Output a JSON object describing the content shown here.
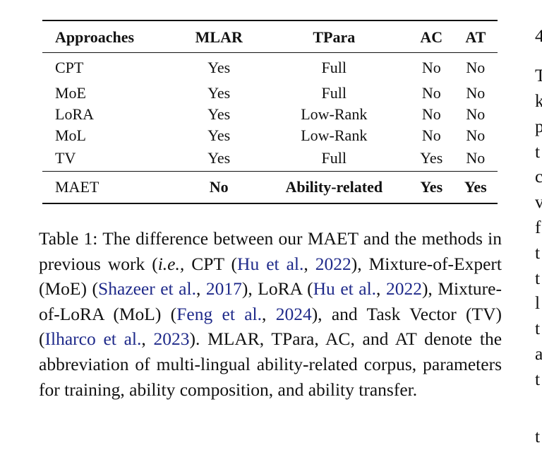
{
  "table": {
    "headers": [
      "Approaches",
      "MLAR",
      "TPara",
      "AC",
      "AT"
    ],
    "rows": [
      [
        "CPT",
        "Yes",
        "Full",
        "No",
        "No"
      ],
      [
        "MoE",
        "Yes",
        "Full",
        "No",
        "No"
      ],
      [
        "LoRA",
        "Yes",
        "Low-Rank",
        "No",
        "No"
      ],
      [
        "MoL",
        "Yes",
        "Low-Rank",
        "No",
        "No"
      ],
      [
        "TV",
        "Yes",
        "Full",
        "Yes",
        "No"
      ]
    ],
    "highlight_row": [
      "MAET",
      "No",
      "Ability-related",
      "Yes",
      "Yes"
    ]
  },
  "caption": {
    "t1": "Table 1: The difference between our MAET and the methods in previous work (",
    "ie": "i.e.,",
    "t2": " CPT (",
    "c1": "Hu et al.",
    "s1": ", ",
    "c1y": "2022",
    "t3": "), Mixture-of-Expert (MoE) (",
    "c2": "Shazeer et al.",
    "s2": ", ",
    "c2y": "2017",
    "t4": "), LoRA (",
    "c3": "Hu et al.",
    "s3": ", ",
    "c3y": "2022",
    "t5": "), Mixture-of-LoRA (MoL) (",
    "c4": "Feng et al.",
    "s4": ", ",
    "c4y": "2024",
    "t6": "), and Task Vector (TV) (",
    "c5": "Ilharco et al.",
    "s5": ", ",
    "c5y": "2023",
    "t7": "). MLAR, TPara, AC, and AT denote the abbreviation of multi-lingual ability-related corpus, parameters for training, ability composition, and ability transfer."
  },
  "right_column_glyphs": [
    "4",
    "T",
    "k",
    "p",
    "t",
    "c",
    "v",
    "f",
    "t",
    "t",
    "l",
    "t",
    "a",
    "t",
    "t"
  ]
}
